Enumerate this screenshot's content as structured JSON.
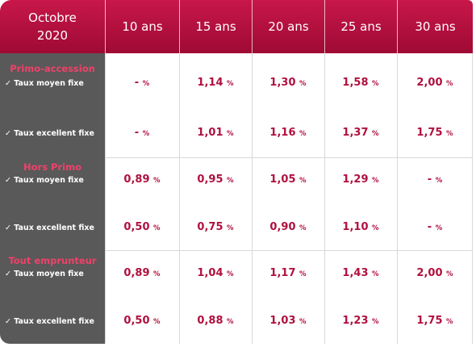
{
  "header": {
    "corner": "Octobre 2020",
    "columns": [
      "10 ans",
      "15 ans",
      "20 ans",
      "25 ans",
      "30 ans"
    ]
  },
  "unit": "%",
  "groups": [
    {
      "label": "Primo-accession",
      "rows": [
        {
          "label": "✓ Taux moyen fixe",
          "cells": [
            "-",
            "1,14",
            "1,30",
            "1,58",
            "2,00"
          ]
        },
        {
          "label": "✓ Taux excellent fixe",
          "cells": [
            "-",
            "1,01",
            "1,16",
            "1,37",
            "1,75"
          ]
        }
      ]
    },
    {
      "label": "Hors Primo",
      "rows": [
        {
          "label": "✓ Taux moyen fixe",
          "cells": [
            "0,89",
            "0,95",
            "1,05",
            "1,29",
            "-"
          ]
        },
        {
          "label": "✓ Taux excellent fixe",
          "cells": [
            "0,50",
            "0,75",
            "0,90",
            "1,10",
            "-"
          ]
        }
      ]
    },
    {
      "label": "Tout emprunteur",
      "rows": [
        {
          "label": "✓ Taux moyen fixe",
          "cells": [
            "0,89",
            "1,04",
            "1,17",
            "1,43",
            "2,00"
          ]
        },
        {
          "label": "✓ Taux excellent fixe",
          "cells": [
            "0,50",
            "0,88",
            "1,03",
            "1,23",
            "1,75"
          ]
        }
      ]
    }
  ]
}
